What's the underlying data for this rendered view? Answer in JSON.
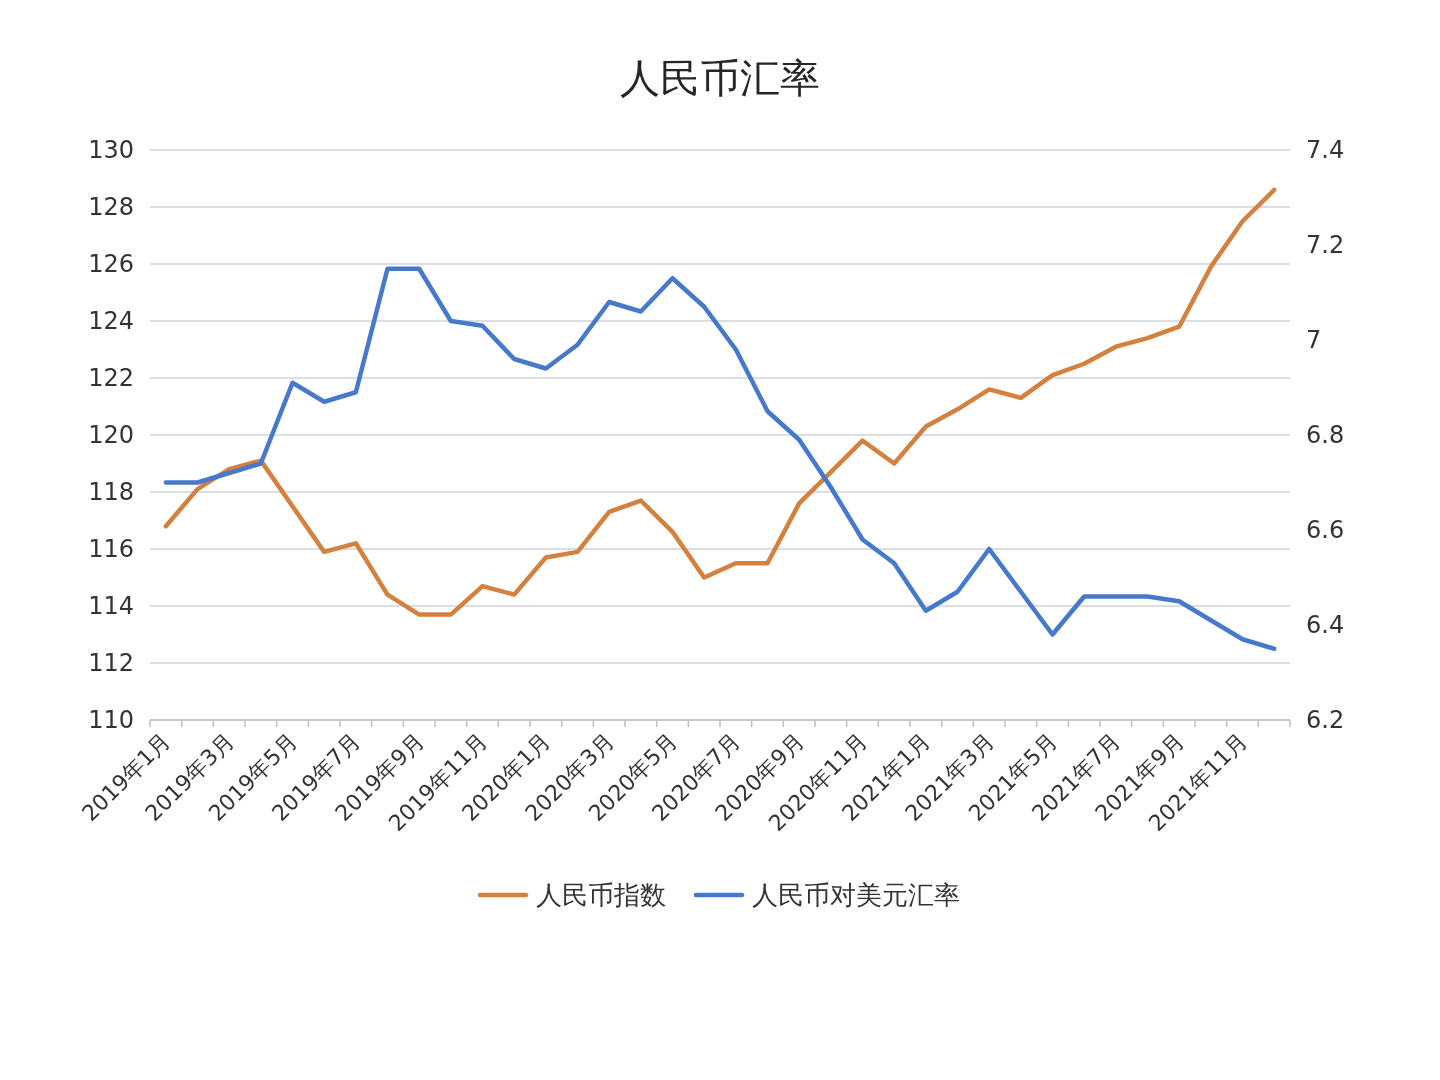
{
  "chart_data": {
    "type": "line",
    "title": "人民币汇率",
    "categories": [
      "2019年1月",
      null,
      "2019年3月",
      null,
      "2019年5月",
      null,
      "2019年7月",
      null,
      "2019年9月",
      null,
      "2019年11月",
      null,
      "2020年1月",
      null,
      "2020年3月",
      null,
      "2020年5月",
      null,
      "2020年7月",
      null,
      "2020年9月",
      null,
      "2020年11月",
      null,
      "2021年1月",
      null,
      "2021年3月",
      null,
      "2021年5月",
      null,
      "2021年7月",
      null,
      "2021年9月",
      null,
      "2021年11月",
      null
    ],
    "series": [
      {
        "name": "人民币指数",
        "color": "#d4803e",
        "values": [
          116.8,
          118.1,
          118.8,
          119.1,
          117.5,
          115.9,
          116.2,
          114.4,
          113.7,
          113.7,
          114.7,
          114.4,
          115.7,
          115.9,
          117.3,
          117.7,
          116.6,
          115.0,
          115.5,
          115.5,
          117.6,
          118.7,
          119.8,
          119.0,
          120.3,
          120.9,
          121.6,
          121.3,
          122.1,
          122.5,
          123.1,
          123.4,
          123.8,
          125.9,
          127.5,
          128.6
        ]
      },
      {
        "name": "人民币对美元汇率",
        "color": "#4678cc",
        "axis": "y2",
        "values": [
          6.7,
          6.7,
          6.72,
          6.74,
          6.91,
          6.87,
          6.89,
          7.15,
          7.15,
          7.04,
          7.03,
          6.96,
          6.94,
          6.99,
          7.08,
          7.06,
          7.13,
          7.07,
          6.98,
          6.85,
          6.79,
          6.69,
          6.58,
          6.53,
          6.43,
          6.47,
          6.56,
          6.47,
          6.38,
          6.46,
          6.46,
          6.46,
          6.45,
          6.41,
          6.37,
          6.35
        ]
      }
    ],
    "ylim": [
      110,
      130
    ],
    "yticks": [
      110,
      112,
      114,
      116,
      118,
      120,
      122,
      124,
      126,
      128,
      130
    ],
    "y2lim": [
      6.2,
      7.4
    ],
    "y2ticks": [
      6.2,
      6.4,
      6.6,
      6.8,
      7,
      7.2,
      7.4
    ],
    "grid": "y",
    "legend": "bottom",
    "line_style": "solid"
  }
}
